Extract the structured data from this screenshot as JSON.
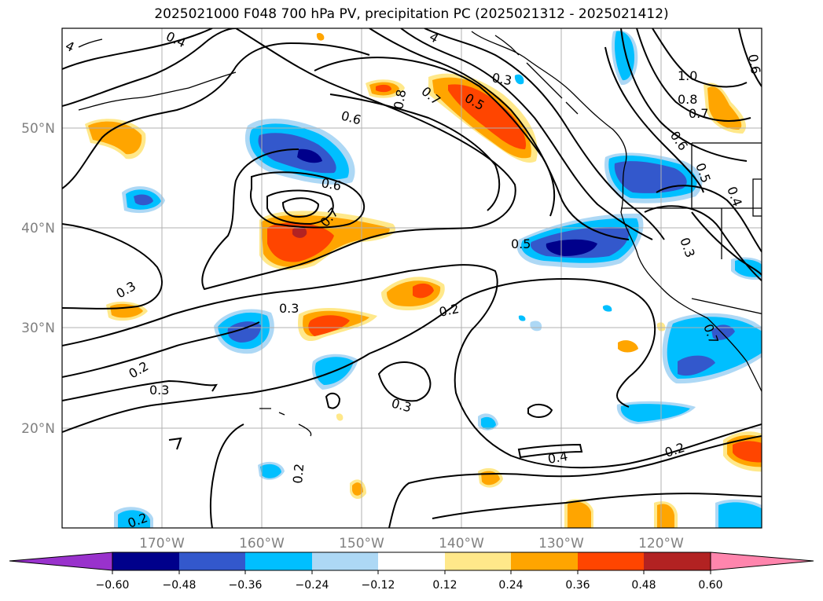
{
  "title": "2025021000 F048 700 hPa PV, precipitation PC (2025021312 - 2025021412)",
  "map": {
    "lat_labels": [
      "50°N",
      "40°N",
      "30°N",
      "20°N"
    ],
    "lon_labels": [
      "170°W",
      "160°W",
      "150°W",
      "140°W",
      "130°W",
      "120°W"
    ],
    "contour_labels": [
      "0.4",
      "0.3",
      "0.5",
      "0.6",
      "0.6",
      "0.7",
      "0.8",
      "0.7",
      "1.0",
      "0.8",
      "0.7",
      "0.6",
      "0.5",
      "0.4",
      "0.3",
      "0.5",
      "0.7",
      "0.3",
      "0.3",
      "0.2",
      "0.2",
      "0.3",
      "0.3",
      "0.4",
      "0.2",
      "0.2",
      "0.2",
      "4",
      "4",
      "0.6"
    ]
  },
  "colorbar": {
    "ticks": [
      "−0.60",
      "−0.48",
      "−0.36",
      "−0.24",
      "−0.12",
      "0.12",
      "0.24",
      "0.36",
      "0.48",
      "0.60"
    ],
    "colors": [
      "#9932cc",
      "#00008b",
      "#3358cc",
      "#00bfff",
      "#add8f5",
      "#ffffff",
      "#ffe88a",
      "#ffa500",
      "#ff4500",
      "#b22222",
      "#ff85ad"
    ]
  }
}
